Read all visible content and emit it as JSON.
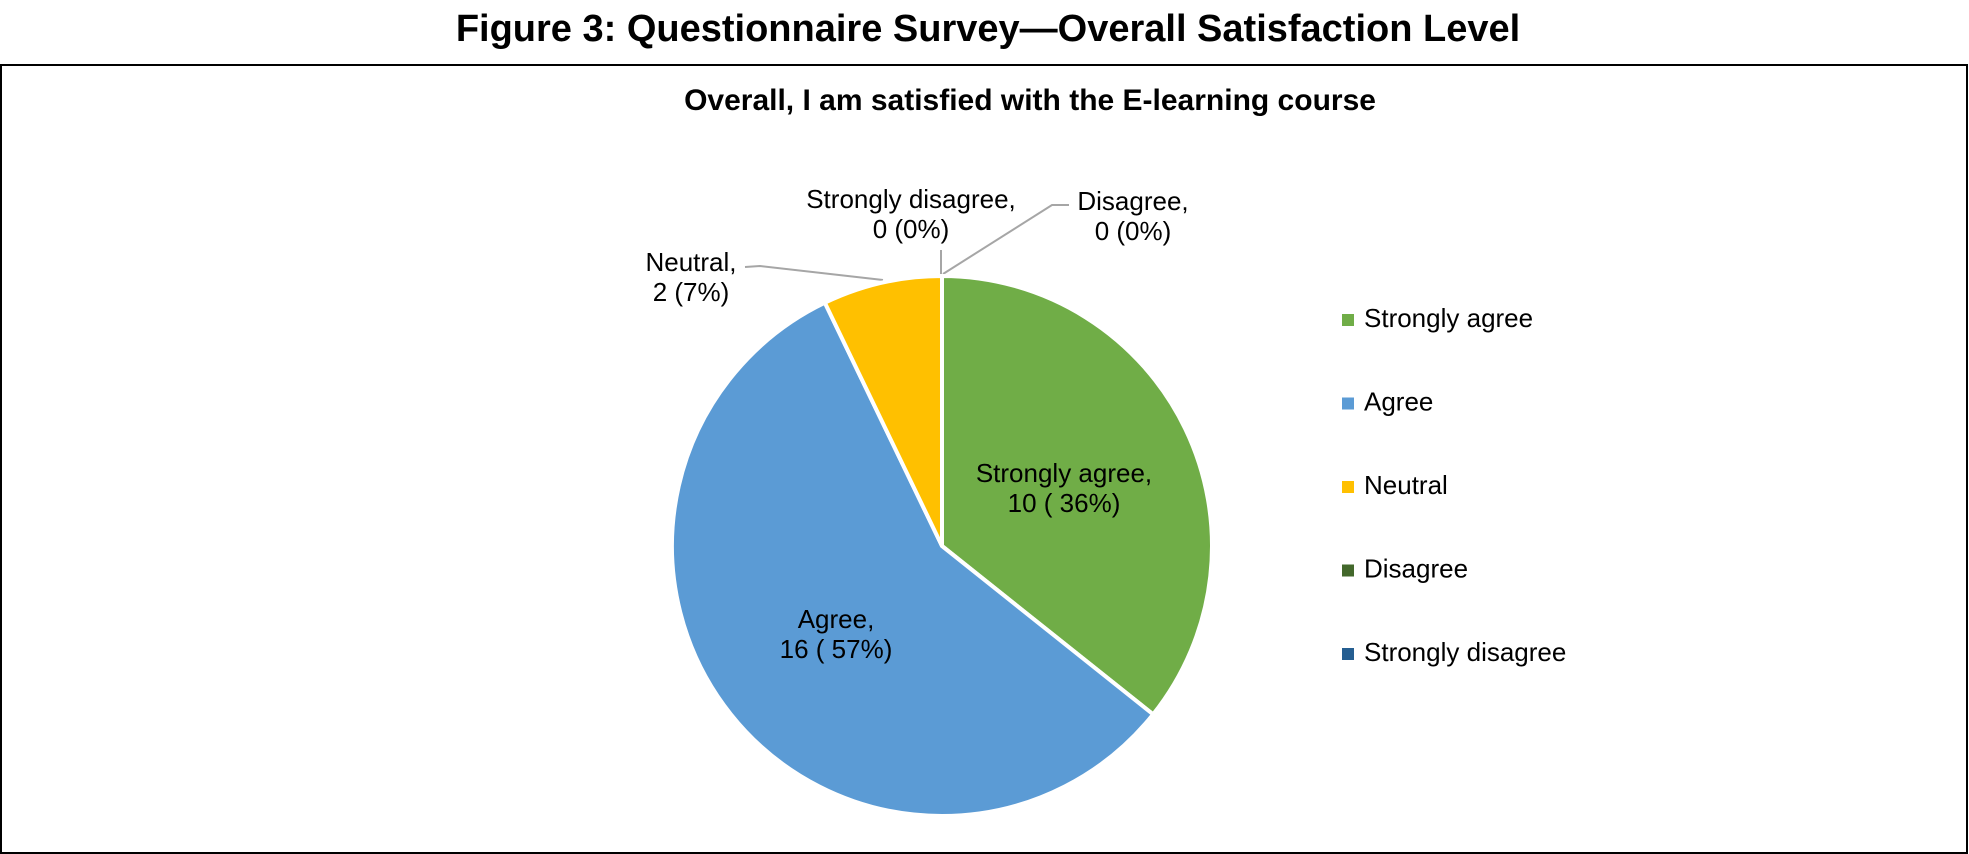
{
  "figure_title": "Figure 3: Questionnaire Survey—Overall Satisfaction Level",
  "chart_data": {
    "type": "pie",
    "title": "Overall, I am satisfied with the E-learning course",
    "categories": [
      "Strongly agree",
      "Agree",
      "Neutral",
      "Disagree",
      "Strongly disagree"
    ],
    "values": [
      10,
      16,
      2,
      0,
      0
    ],
    "value_labels": [
      "Strongly agree,\n10 ( 36%)",
      "Agree,\n16 ( 57%)",
      "Neutral,\n2 (7%)",
      "Disagree,\n0 (0%)",
      "Strongly disagree,\n0 (0%)"
    ],
    "colors": [
      "#70ad47",
      "#5b9bd5",
      "#ffc000",
      "#43682b",
      "#255e91"
    ],
    "legend": "right"
  }
}
